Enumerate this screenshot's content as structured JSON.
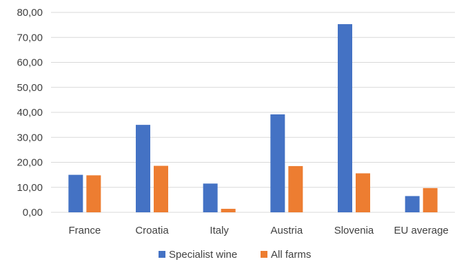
{
  "chart_data": {
    "type": "bar",
    "categories": [
      "France",
      "Croatia",
      "Italy",
      "Austria",
      "Slovenia",
      "EU average"
    ],
    "series": [
      {
        "name": "Specialist wine",
        "values": [
          15.0,
          35.0,
          11.5,
          39.2,
          75.3,
          6.5
        ],
        "color": "#4472c4"
      },
      {
        "name": "All farms",
        "values": [
          14.8,
          18.6,
          1.4,
          18.5,
          15.6,
          9.7
        ],
        "color": "#ed7d31"
      }
    ],
    "yticks": [
      "0,00",
      "10,00",
      "20,00",
      "30,00",
      "40,00",
      "50,00",
      "60,00",
      "70,00",
      "80,00"
    ],
    "ylim": [
      0,
      80
    ],
    "grid": true,
    "legend_position": "bottom"
  }
}
